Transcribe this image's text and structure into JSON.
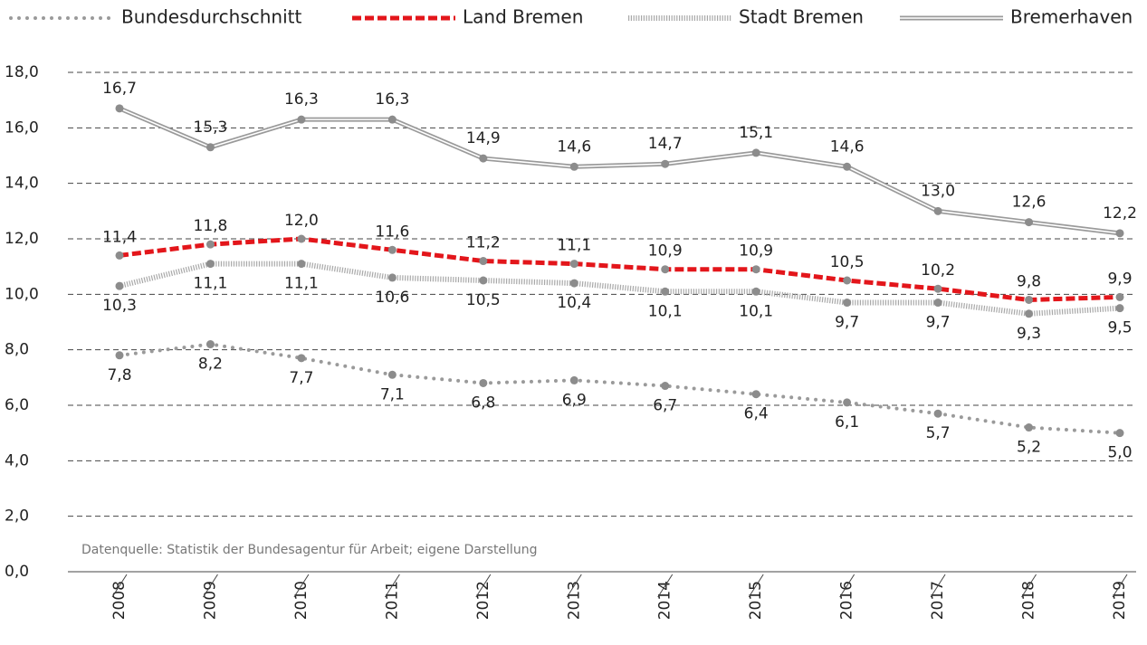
{
  "chart_data": {
    "type": "line",
    "categories": [
      "2008",
      "2009",
      "2010",
      "2011",
      "2012",
      "2013",
      "2014",
      "2015",
      "2016",
      "2017",
      "2018",
      "2019"
    ],
    "series": [
      {
        "name": "Bundesdurchschnitt",
        "color": "#9a9a9a",
        "style": "dotted",
        "values": [
          7.8,
          8.2,
          7.7,
          7.1,
          6.8,
          6.9,
          6.7,
          6.4,
          6.1,
          5.7,
          5.2,
          5.0
        ],
        "value_labels": [
          "7,8",
          "8,2",
          "7,7",
          "7,1",
          "6,8",
          "6,9",
          "6,7",
          "6,4",
          "6,1",
          "5,7",
          "5,2",
          "5,0"
        ]
      },
      {
        "name": "Land Bremen",
        "color": "#e3161b",
        "style": "dashed",
        "values": [
          11.4,
          11.8,
          12.0,
          11.6,
          11.2,
          11.1,
          10.9,
          10.9,
          10.5,
          10.2,
          9.8,
          9.9
        ],
        "value_labels": [
          "11,4",
          "11,8",
          "12,0",
          "11,6",
          "11,2",
          "11,1",
          "10,9",
          "10,9",
          "10,5",
          "10,2",
          "9,8",
          "9,9"
        ]
      },
      {
        "name": "Stadt Bremen",
        "color": "#a8a8a8",
        "style": "hatched",
        "values": [
          10.3,
          11.1,
          11.1,
          10.6,
          10.5,
          10.4,
          10.1,
          10.1,
          9.7,
          9.7,
          9.3,
          9.5
        ],
        "value_labels": [
          "10,3",
          "11,1",
          "11,1",
          "10,6",
          "10,5",
          "10,4",
          "10,1",
          "10,1",
          "9,7",
          "9,7",
          "9,3",
          "9,5"
        ]
      },
      {
        "name": "Bremerhaven",
        "color": "#9a9a9a",
        "style": "double",
        "values": [
          16.7,
          15.3,
          16.3,
          16.3,
          14.9,
          14.6,
          14.7,
          15.1,
          14.6,
          13.0,
          12.6,
          12.2
        ],
        "value_labels": [
          "16,7",
          "15,3",
          "16,3",
          "16,3",
          "14,9",
          "14,6",
          "14,7",
          "15,1",
          "14,6",
          "13,0",
          "12,6",
          "12,2"
        ]
      }
    ],
    "ylim": [
      0,
      18
    ],
    "yticks": [
      {
        "value": 0,
        "label": "0,0"
      },
      {
        "value": 2,
        "label": "2,0"
      },
      {
        "value": 4,
        "label": "4,0"
      },
      {
        "value": 6,
        "label": "6,0"
      },
      {
        "value": 8,
        "label": "8,0"
      },
      {
        "value": 10,
        "label": "10,0"
      },
      {
        "value": 12,
        "label": "12,0"
      },
      {
        "value": 14,
        "label": "14,0"
      },
      {
        "value": 16,
        "label": "16,0"
      },
      {
        "value": 18,
        "label": "18,0"
      }
    ],
    "grid": true,
    "source": "Datenquelle: Statistik der Bundesagentur für Arbeit; eigene Darstellung"
  }
}
